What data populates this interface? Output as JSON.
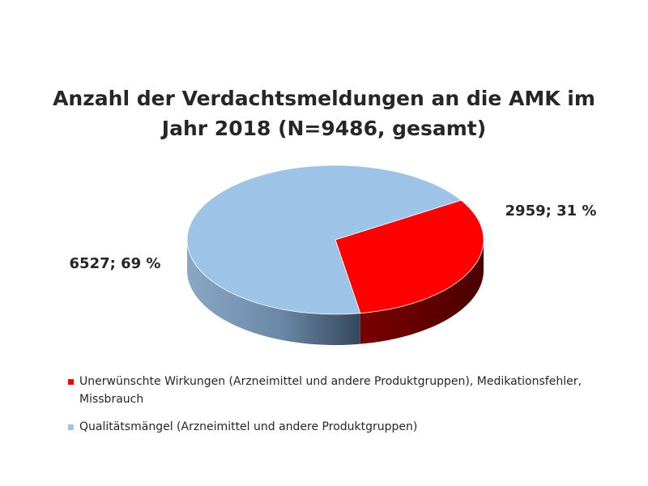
{
  "chart_data": {
    "type": "pie",
    "title": "Anzahl der Verdachtsmeldungen an die AMK im Jahr 2018 (N=9486, gesamt)",
    "title_lines": [
      "Anzahl der Verdachtsmeldungen an die AMK im",
      "Jahr 2018 (N=9486, gesamt)"
    ],
    "three_d": true,
    "slices": [
      {
        "name": "Unerwünschte Wirkungen (Arzneimittel und andere Produktgruppen), Medikationsfehler, Missbrauch",
        "value": 2959,
        "percent": 31,
        "data_label": "2959; 31 %",
        "color": "#ff0000",
        "side_color": "#6b0000"
      },
      {
        "name": "Qualitätsmängel (Arzneimittel und andere Produktgruppen)",
        "value": 6527,
        "percent": 69,
        "data_label": "6527; 69 %",
        "color": "#9dc3e6",
        "side_color": "#5f7a96"
      }
    ],
    "legend_position": "bottom"
  }
}
